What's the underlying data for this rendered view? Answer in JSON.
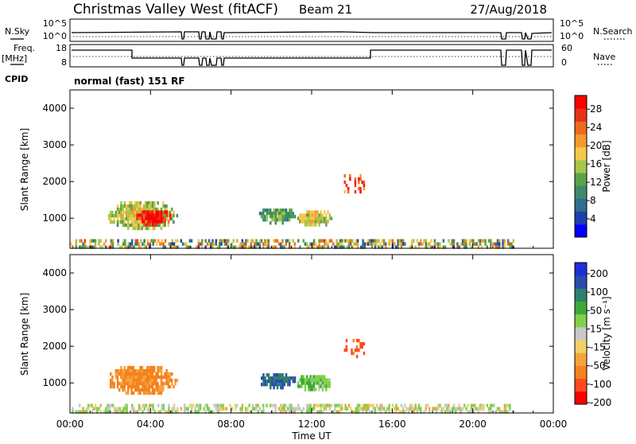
{
  "header": {
    "title": "Christmas Valley West (fitACF)",
    "beam": "Beam 21",
    "date": "27/Aug/2018"
  },
  "colors": {
    "power_scale": [
      "#0000ff",
      "#1f3fb0",
      "#2e6e8e",
      "#3d8b6a",
      "#5aa34b",
      "#a8c64a",
      "#f5c84a",
      "#f29a2e",
      "#ee6a1f",
      "#e8321a",
      "#ff0000"
    ],
    "velocity_scale": [
      "#ff0000",
      "#ff4a1c",
      "#f6811f",
      "#f4a53a",
      "#f2cf6a",
      "#c8c8c8",
      "#7fd24a",
      "#3fa83a",
      "#2e7f6f",
      "#2a4cb0",
      "#1e2fd8"
    ]
  },
  "status_panels": {
    "nsky": {
      "left_label": "N.Sky",
      "left_ticks": [
        "10^5",
        "10^0"
      ],
      "right_ticks": [
        "10^5",
        "10^0"
      ],
      "right_label": "N.Search"
    },
    "freq": {
      "left_label_1": "Freq.",
      "left_label_2": "[MHz]",
      "left_ticks": [
        "18",
        "8"
      ],
      "right_ticks": [
        "60",
        "0"
      ],
      "right_label": "Nave"
    },
    "cpid": {
      "label": "CPID",
      "text": "normal (fast) 151 RF"
    }
  },
  "chart_data": [
    {
      "type": "heatmap",
      "title": "Power",
      "xlabel": "",
      "ylabel": "Slant Range [km]",
      "x_range_hours": [
        0,
        24
      ],
      "ylim": [
        180,
        4500
      ],
      "yticks": [
        1000,
        2000,
        3000,
        4000
      ],
      "colorbar": {
        "label": "Power [dB]",
        "ticks": [
          "4",
          "8",
          "12",
          "16",
          "20",
          "24",
          "28"
        ],
        "range": [
          0,
          31
        ]
      },
      "echo_regions": [
        {
          "name": "near-range ground scatter",
          "x": [
            0.0,
            22.0
          ],
          "y": [
            200,
            430
          ],
          "level": 12
        },
        {
          "name": "patch 1",
          "x": [
            1.8,
            5.3
          ],
          "y": [
            700,
            1550
          ],
          "level": 14
        },
        {
          "name": "patch 1 core",
          "x": [
            3.2,
            5.0
          ],
          "y": [
            800,
            1300
          ],
          "level": 26
        },
        {
          "name": "patch 2",
          "x": [
            9.3,
            11.2
          ],
          "y": [
            900,
            1350
          ],
          "level": 10
        },
        {
          "name": "patch 3",
          "x": [
            11.2,
            13.0
          ],
          "y": [
            800,
            1300
          ],
          "level": 14
        },
        {
          "name": "scattered echoes",
          "x": [
            13.6,
            14.6
          ],
          "y": [
            1700,
            2200
          ],
          "level": 24
        }
      ]
    },
    {
      "type": "heatmap",
      "title": "Velocity",
      "xlabel": "Time UT",
      "ylabel": "Slant Range [km]",
      "x_range_hours": [
        0,
        24
      ],
      "xticks": [
        "00:00",
        "04:00",
        "08:00",
        "12:00",
        "16:00",
        "20:00",
        "00:00"
      ],
      "ylim": [
        180,
        4500
      ],
      "yticks": [
        1000,
        2000,
        3000,
        4000
      ],
      "colorbar": {
        "label": "Velocity [m s⁻¹]",
        "ticks": [
          "200",
          "100",
          "50",
          "15",
          "-15",
          "-50",
          "-100",
          "-200"
        ]
      },
      "echo_regions": [
        {
          "name": "near-range ground scatter",
          "x": [
            0.0,
            22.0
          ],
          "y": [
            200,
            430
          ],
          "level": 0
        },
        {
          "name": "patch 1",
          "x": [
            1.8,
            5.3
          ],
          "y": [
            700,
            1550
          ],
          "level": -60
        },
        {
          "name": "patch 2",
          "x": [
            9.3,
            11.2
          ],
          "y": [
            900,
            1350
          ],
          "level": 150
        },
        {
          "name": "patch 3",
          "x": [
            11.2,
            13.0
          ],
          "y": [
            800,
            1300
          ],
          "level": 40
        },
        {
          "name": "scattered echoes",
          "x": [
            13.6,
            14.6
          ],
          "y": [
            1700,
            2200
          ],
          "level": -120
        }
      ]
    }
  ]
}
